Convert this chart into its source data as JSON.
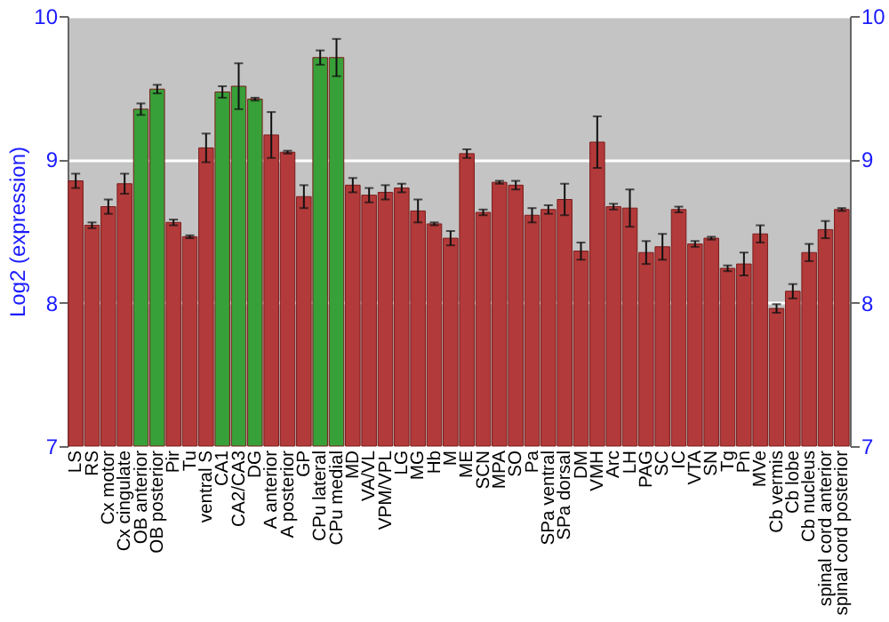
{
  "chart_data": {
    "type": "bar",
    "ylabel": "Log2 (expression)",
    "categories": [
      "LS",
      "RS",
      "Cx motor",
      "Cx cingulate",
      "OB anterior",
      "OB posterior",
      "Pir",
      "Tu",
      "ventral S",
      "CA1",
      "CA2/CA3",
      "DG",
      "A anterior",
      "A posterior",
      "GP",
      "CPu lateral",
      "CPu medial",
      "MD",
      "VA/VL",
      "VPM/VPL",
      "LG",
      "MG",
      "Hb",
      "M",
      "ME",
      "SCN",
      "MPA",
      "SO",
      "Pa",
      "SPa ventral",
      "SPa dorsal",
      "DM",
      "VMH",
      "Arc",
      "LH",
      "PAG",
      "SC",
      "IC",
      "VTA",
      "SN",
      "Tg",
      "Pn",
      "MVe",
      "Cb vermis",
      "Cb lobe",
      "Cb nucleus",
      "spinal cord anterior",
      "spinal cord posterior"
    ],
    "values": [
      8.85,
      8.54,
      8.67,
      8.83,
      9.35,
      9.49,
      8.56,
      8.46,
      9.08,
      9.47,
      9.51,
      9.42,
      9.17,
      9.05,
      8.74,
      9.71,
      9.71,
      8.82,
      8.75,
      8.77,
      8.8,
      8.64,
      8.55,
      8.45,
      9.04,
      8.63,
      8.84,
      8.82,
      8.61,
      8.65,
      8.72,
      8.36,
      9.12,
      8.67,
      8.66,
      8.35,
      8.39,
      8.65,
      8.41,
      8.45,
      8.24,
      8.27,
      8.48,
      7.96,
      8.08,
      8.35,
      8.51,
      8.65
    ],
    "errors": [
      0.05,
      0.02,
      0.05,
      0.07,
      0.04,
      0.03,
      0.02,
      0.01,
      0.1,
      0.04,
      0.16,
      0.01,
      0.16,
      0.01,
      0.08,
      0.05,
      0.13,
      0.05,
      0.05,
      0.05,
      0.03,
      0.08,
      0.01,
      0.05,
      0.03,
      0.02,
      0.01,
      0.03,
      0.05,
      0.03,
      0.11,
      0.06,
      0.18,
      0.02,
      0.13,
      0.08,
      0.09,
      0.02,
      0.02,
      0.01,
      0.02,
      0.08,
      0.06,
      0.03,
      0.05,
      0.06,
      0.06,
      0.01
    ],
    "colors": [
      "#b33a3a",
      "#b33a3a",
      "#b33a3a",
      "#b33a3a",
      "#38a038",
      "#38a038",
      "#b33a3a",
      "#b33a3a",
      "#b33a3a",
      "#38a038",
      "#38a038",
      "#38a038",
      "#b33a3a",
      "#b33a3a",
      "#b33a3a",
      "#38a038",
      "#38a038",
      "#b33a3a",
      "#b33a3a",
      "#b33a3a",
      "#b33a3a",
      "#b33a3a",
      "#b33a3a",
      "#b33a3a",
      "#b33a3a",
      "#b33a3a",
      "#b33a3a",
      "#b33a3a",
      "#b33a3a",
      "#b33a3a",
      "#b33a3a",
      "#b33a3a",
      "#b33a3a",
      "#b33a3a",
      "#b33a3a",
      "#b33a3a",
      "#b33a3a",
      "#b33a3a",
      "#b33a3a",
      "#b33a3a",
      "#b33a3a",
      "#b33a3a",
      "#b33a3a",
      "#b33a3a",
      "#b33a3a",
      "#b33a3a",
      "#b33a3a",
      "#b33a3a"
    ],
    "ylim": [
      7,
      10
    ],
    "yticks": [
      7,
      8,
      9,
      10
    ],
    "y2lim": [
      7,
      10
    ],
    "y2ticks": [
      7,
      8,
      9,
      10
    ],
    "grid": "y"
  }
}
